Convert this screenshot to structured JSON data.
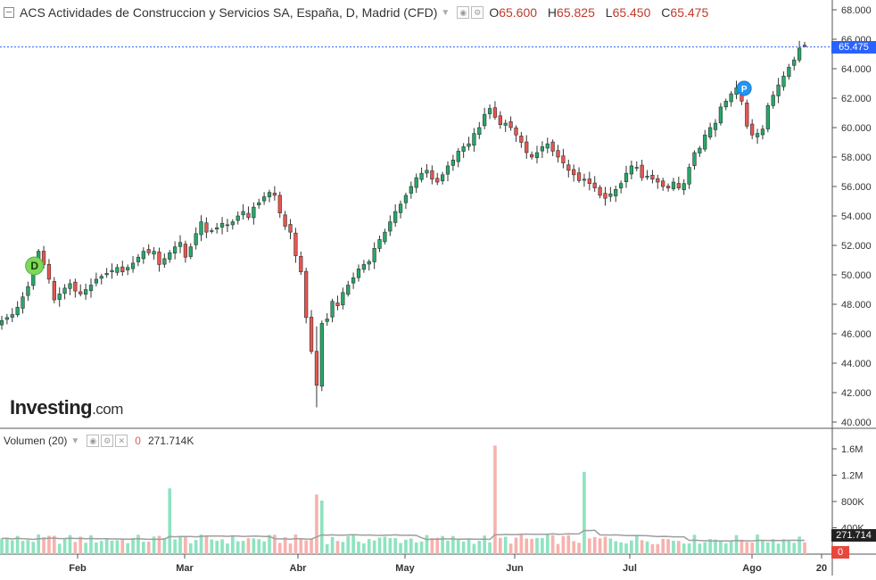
{
  "header": {
    "title": "ACS Actividades de Construccion y Servicios SA, España, D, Madrid (CFD)",
    "o_key": "O",
    "o_val": "65.600",
    "h_key": "H",
    "h_val": "65.825",
    "l_key": "L",
    "l_val": "65.450",
    "c_key": "C",
    "c_val": "65.475"
  },
  "volume_header": {
    "label": "Volumen (20)",
    "last_change": "0",
    "value": "271.714K"
  },
  "brand": {
    "name": "Investing",
    "suffix": ".com"
  },
  "price_axis_labels": {
    "current_price": "65.475",
    "volume_value": "271.714",
    "volume_zero": "0"
  },
  "markers": {
    "dividend": "D",
    "earnings": "P"
  },
  "colors": {
    "up": "#26a869",
    "down": "#e8564f",
    "up_volume": "#8fe3c0",
    "down_volume": "#f7b2ad",
    "ma_line": "#9e9e9e",
    "price_line": "#2962ff"
  },
  "chart_data": {
    "type": "candlestick",
    "y_ticks": [
      "68.000",
      "66.000",
      "64.000",
      "62.000",
      "60.000",
      "58.000",
      "56.000",
      "54.000",
      "52.000",
      "50.000",
      "48.000",
      "46.000",
      "44.000",
      "42.000",
      "40.000"
    ],
    "ylim": [
      40,
      68
    ],
    "x_labels": [
      "Feb",
      "Mar",
      "Abr",
      "May",
      "Jun",
      "Jul",
      "Ago",
      "20"
    ],
    "x_label_dates": [
      "2019-02-01",
      "2019-03-01",
      "2019-04-01",
      "2019-05-01",
      "2019-06-01",
      "2019-07-01",
      "2019-08-01",
      "2019-08-20"
    ],
    "volume_y_ticks": [
      "1.6M",
      "1.2M",
      "800K",
      "400K"
    ],
    "volume_ylim": [
      0,
      1800000
    ],
    "volume_ma_period": 20,
    "close_by_day": [
      46.9,
      47.1,
      47.3,
      47.8,
      48.5,
      49.2,
      50.8,
      51.6,
      50.7,
      49.7,
      48.3,
      48.7,
      49.1,
      49.4,
      48.9,
      48.7,
      49.0,
      49.3,
      49.7,
      49.9,
      50.1,
      50.3,
      50.5,
      50.2,
      50.5,
      50.8,
      51.2,
      51.6,
      51.5,
      51.6,
      50.7,
      51.1,
      51.5,
      51.9,
      52.2,
      51.2,
      51.9,
      52.8,
      53.6,
      52.9,
      53.0,
      53.2,
      53.5,
      53.4,
      53.6,
      54.0,
      54.3,
      53.9,
      54.6,
      54.9,
      55.3,
      55.6,
      55.4,
      54.2,
      53.3,
      52.9,
      51.3,
      50.2,
      47.1,
      44.8,
      42.5,
      46.7,
      47.0,
      48.2,
      47.9,
      48.8,
      49.3,
      49.8,
      50.4,
      50.7,
      50.9,
      51.8,
      52.4,
      52.9,
      53.6,
      54.3,
      54.8,
      55.4,
      56.0,
      56.6,
      56.9,
      57.1,
      56.5,
      56.3,
      56.8,
      57.4,
      57.8,
      58.4,
      58.7,
      58.9,
      59.6,
      60.0,
      60.9,
      61.3,
      60.7,
      60.2,
      60.3,
      60.0,
      59.5,
      59.0,
      58.3,
      58.0,
      58.3,
      58.7,
      58.9,
      58.4,
      58.0,
      57.6,
      57.1,
      56.8,
      56.4,
      56.5,
      56.2,
      55.9,
      55.4,
      55.2,
      55.5,
      55.8,
      56.2,
      56.9,
      57.4,
      57.3,
      56.6,
      56.7,
      56.5,
      56.3,
      56.0,
      55.9,
      56.3,
      55.9,
      56.2,
      57.3,
      58.3,
      58.6,
      59.5,
      60.0,
      60.3,
      61.4,
      61.8,
      62.3,
      62.7,
      61.8,
      60.1,
      59.5,
      59.6,
      59.9,
      61.5,
      62.2,
      62.9,
      63.5,
      64.1,
      64.6,
      65.4,
      65.5
    ],
    "events": [
      {
        "marker": "D",
        "label": "dividend",
        "date": "2019-01-22"
      },
      {
        "marker": "P",
        "label": "earnings",
        "date": "2019-07-30"
      }
    ],
    "last": {
      "open": 65.6,
      "high": 65.825,
      "low": 65.45,
      "close": 65.475
    }
  }
}
